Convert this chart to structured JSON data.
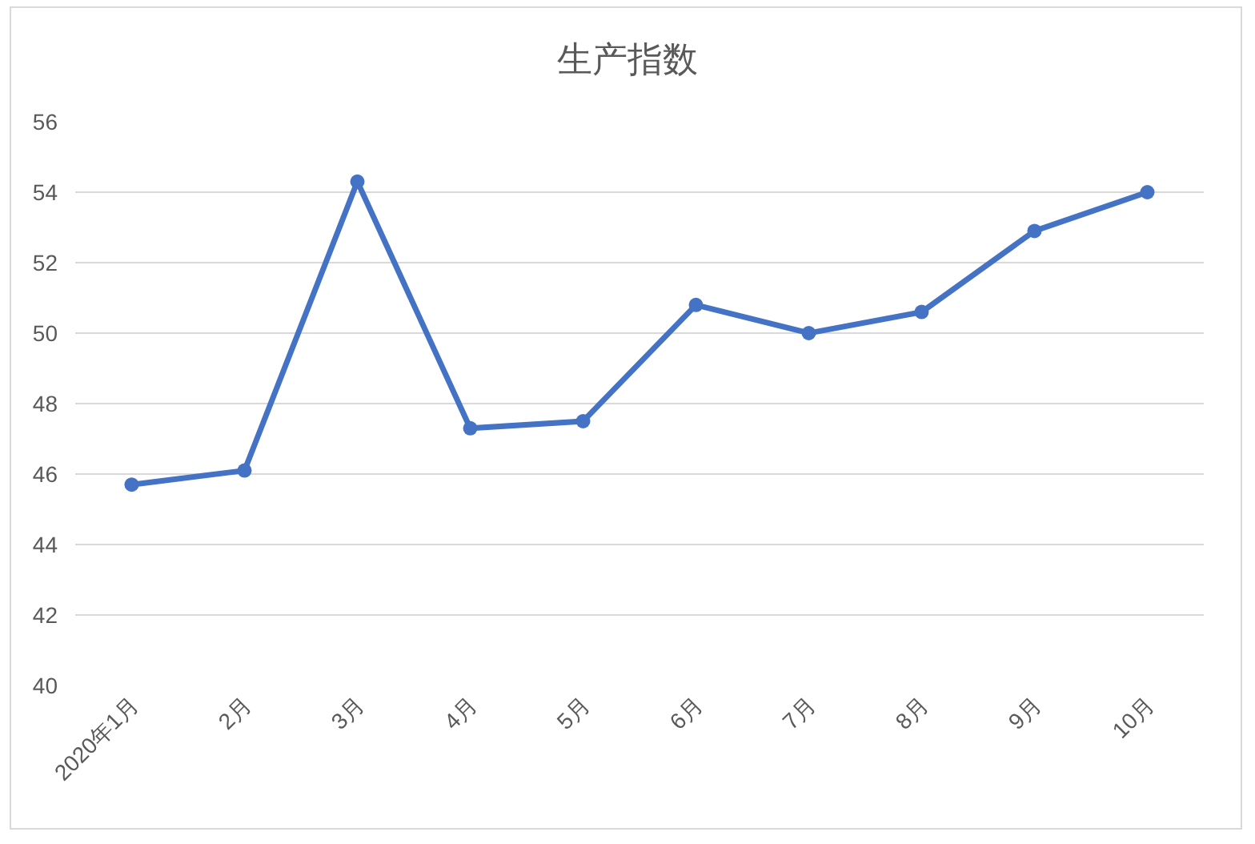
{
  "chart_data": {
    "type": "line",
    "title": "生产指数",
    "categories": [
      "2020年1月",
      "2月",
      "3月",
      "4月",
      "5月",
      "6月",
      "7月",
      "8月",
      "9月",
      "10月"
    ],
    "series": [
      {
        "color": "#4472c4",
        "values": [
          45.7,
          46.1,
          54.3,
          47.3,
          47.5,
          50.8,
          50.0,
          50.6,
          52.9,
          54.0
        ]
      }
    ],
    "ylim": [
      40,
      56
    ],
    "yticks": [
      40,
      42,
      44,
      46,
      48,
      50,
      52,
      54,
      56
    ],
    "grid": "y",
    "marker": "circle",
    "line_style": "solid"
  }
}
